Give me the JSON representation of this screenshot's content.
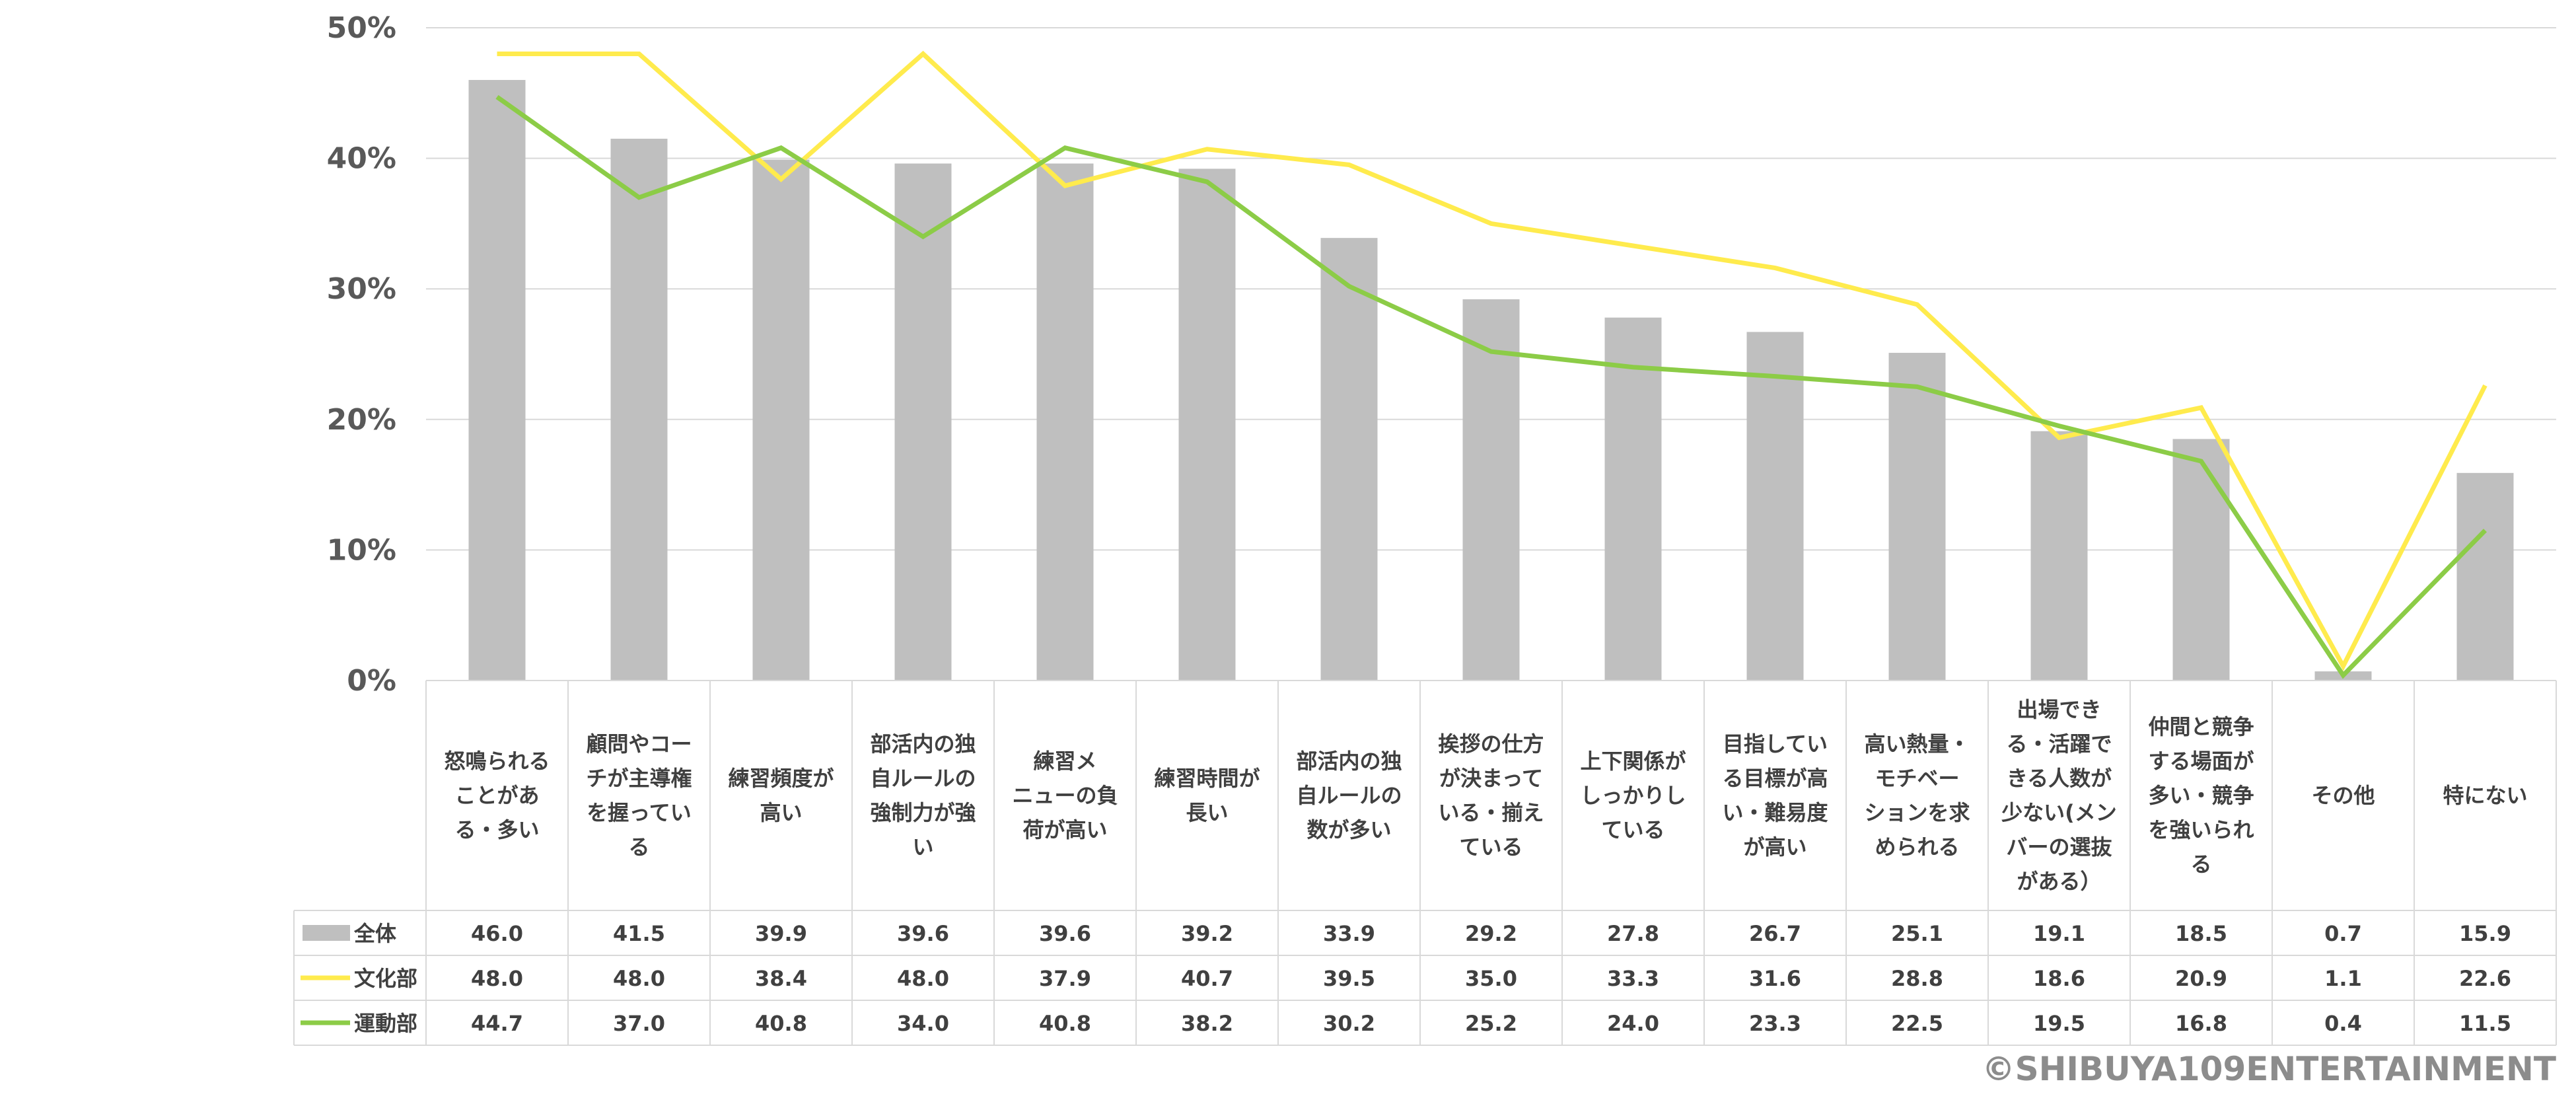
{
  "chart_data": {
    "type": "bar",
    "title": "",
    "xlabel": "",
    "ylabel": "",
    "ylim": [
      0,
      50
    ],
    "yticks": [
      "0%",
      "10%",
      "20%",
      "30%",
      "40%",
      "50%"
    ],
    "grid": true,
    "categories": [
      [
        "怒鳴られる",
        "ことがあ",
        "る・多い"
      ],
      [
        "顧問やコー",
        "チが主導権",
        "を握ってい",
        "る"
      ],
      [
        "練習頻度が",
        "高い"
      ],
      [
        "部活内の独",
        "自ルールの",
        "強制力が強",
        "い"
      ],
      [
        "練習メ",
        "ニューの負",
        "荷が高い"
      ],
      [
        "練習時間が",
        "長い"
      ],
      [
        "部活内の独",
        "自ルールの",
        "数が多い"
      ],
      [
        "挨拶の仕方",
        "が決まって",
        "いる・揃え",
        "ている"
      ],
      [
        "上下関係が",
        "しっかりし",
        "ている"
      ],
      [
        "目指してい",
        "る目標が高",
        "い・難易度",
        "が高い"
      ],
      [
        "高い熱量・",
        "モチベー",
        "ションを求",
        "められる"
      ],
      [
        "出場でき",
        "る・活躍で",
        "きる人数が",
        "少ない(メン",
        "バーの選抜",
        "がある）"
      ],
      [
        "仲間と競争",
        "する場面が",
        "多い・競争",
        "を強いられ",
        "る"
      ],
      [
        "その他"
      ],
      [
        "特にない"
      ]
    ],
    "series": [
      {
        "name": "全体",
        "kind": "bar",
        "color": "#bfbfbf",
        "values": [
          46.0,
          41.5,
          39.9,
          39.6,
          39.6,
          39.2,
          33.9,
          29.2,
          27.8,
          26.7,
          25.1,
          19.1,
          18.5,
          0.7,
          15.9
        ],
        "labels": [
          "46.0",
          "41.5",
          "39.9",
          "39.6",
          "39.6",
          "39.2",
          "33.9",
          "29.2",
          "27.8",
          "26.7",
          "25.1",
          "19.1",
          "18.5",
          "0.7",
          "15.9"
        ]
      },
      {
        "name": "文化部",
        "kind": "line",
        "color": "#ffeb4d",
        "values": [
          48.0,
          48.0,
          38.4,
          48.0,
          37.9,
          40.7,
          39.5,
          35.0,
          33.3,
          31.6,
          28.8,
          18.6,
          20.9,
          1.1,
          22.6
        ],
        "labels": [
          "48.0",
          "48.0",
          "38.4",
          "48.0",
          "37.9",
          "40.7",
          "39.5",
          "35.0",
          "33.3",
          "31.6",
          "28.8",
          "18.6",
          "20.9",
          "1.1",
          "22.6"
        ]
      },
      {
        "name": "運動部",
        "kind": "line",
        "color": "#8ccc47",
        "values": [
          44.7,
          37.0,
          40.8,
          34.0,
          40.8,
          38.2,
          30.2,
          25.2,
          24.0,
          23.3,
          22.5,
          19.5,
          16.8,
          0.4,
          11.5
        ],
        "labels": [
          "44.7",
          "37.0",
          "40.8",
          "34.0",
          "40.8",
          "38.2",
          "30.2",
          "25.2",
          "24.0",
          "23.3",
          "22.5",
          "19.5",
          "16.8",
          "0.4",
          "11.5"
        ]
      }
    ],
    "legend": "data-table-left",
    "annotations": [
      "©SHIBUYA109ENTERTAINMENT"
    ]
  },
  "colors": {
    "grid": "#d9d9d9",
    "table_border": "#d9d9d9",
    "text": "#404040",
    "axis_text": "#595959",
    "copyright": "#8c8c8c"
  }
}
